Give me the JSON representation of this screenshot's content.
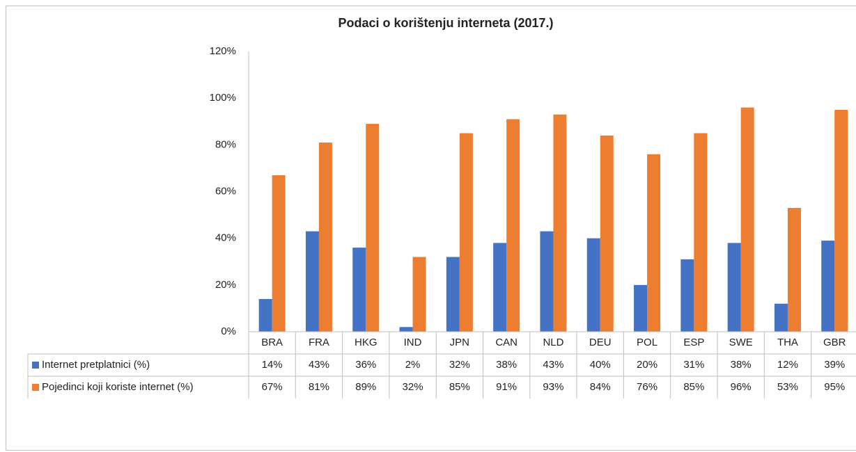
{
  "chart_data": {
    "type": "bar",
    "title": "Podaci o korištenju interneta (2017.)",
    "categories": [
      "BRA",
      "FRA",
      "HKG",
      "IND",
      "JPN",
      "CAN",
      "NLD",
      "DEU",
      "POL",
      "ESP",
      "SWE",
      "THA",
      "GBR"
    ],
    "series": [
      {
        "name": "Internet pretplatnici (%)",
        "color": "#4472c4",
        "values": [
          14,
          43,
          36,
          2,
          32,
          38,
          43,
          40,
          20,
          31,
          38,
          12,
          39
        ],
        "value_labels": [
          "14%",
          "43%",
          "36%",
          "2%",
          "32%",
          "38%",
          "43%",
          "40%",
          "20%",
          "31%",
          "38%",
          "12%",
          "39%"
        ]
      },
      {
        "name": "Pojedinci koji koriste internet (%)",
        "color": "#ed7d31",
        "values": [
          67,
          81,
          89,
          32,
          85,
          91,
          93,
          84,
          76,
          85,
          96,
          53,
          95
        ],
        "value_labels": [
          "67%",
          "81%",
          "89%",
          "32%",
          "85%",
          "91%",
          "93%",
          "84%",
          "76%",
          "85%",
          "96%",
          "53%",
          "95%"
        ]
      }
    ],
    "ylim": [
      0,
      120
    ],
    "yticks": [
      {
        "value": 0,
        "label": "0%"
      },
      {
        "value": 20,
        "label": "20%"
      },
      {
        "value": 40,
        "label": "40%"
      },
      {
        "value": 60,
        "label": "60%"
      },
      {
        "value": 80,
        "label": "80%"
      },
      {
        "value": 100,
        "label": "100%"
      },
      {
        "value": 120,
        "label": "120%"
      }
    ],
    "data_table": true
  }
}
